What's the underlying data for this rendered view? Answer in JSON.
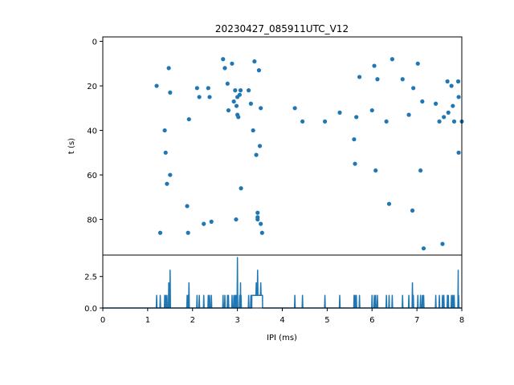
{
  "figure": {
    "title": "20230427_085911UTC_V12",
    "marker_color": "#1f77b4",
    "line_color": "#1f77b4"
  },
  "chart_data": [
    {
      "type": "scatter",
      "title": "20230427_085911UTC_V12",
      "xlabel": "",
      "ylabel": "t (s)",
      "xlim": [
        0,
        8
      ],
      "ylim": [
        96,
        -2
      ],
      "y_inverted": true,
      "yticks": [
        0,
        20,
        40,
        60,
        80
      ],
      "ytick_labels": [
        "0",
        "20",
        "40",
        "60",
        "80"
      ],
      "grid": false,
      "points": [
        {
          "x": 1.2,
          "y": 20
        },
        {
          "x": 1.28,
          "y": 86
        },
        {
          "x": 1.38,
          "y": 40
        },
        {
          "x": 1.4,
          "y": 50
        },
        {
          "x": 1.43,
          "y": 64
        },
        {
          "x": 1.47,
          "y": 12
        },
        {
          "x": 1.5,
          "y": 23
        },
        {
          "x": 1.5,
          "y": 60
        },
        {
          "x": 1.88,
          "y": 74
        },
        {
          "x": 1.9,
          "y": 86
        },
        {
          "x": 1.92,
          "y": 35
        },
        {
          "x": 2.1,
          "y": 21
        },
        {
          "x": 2.15,
          "y": 25
        },
        {
          "x": 2.25,
          "y": 82
        },
        {
          "x": 2.35,
          "y": 21
        },
        {
          "x": 2.38,
          "y": 25
        },
        {
          "x": 2.42,
          "y": 81
        },
        {
          "x": 2.68,
          "y": 8
        },
        {
          "x": 2.72,
          "y": 12
        },
        {
          "x": 2.78,
          "y": 19
        },
        {
          "x": 2.8,
          "y": 31
        },
        {
          "x": 2.88,
          "y": 10
        },
        {
          "x": 2.92,
          "y": 27
        },
        {
          "x": 2.95,
          "y": 22
        },
        {
          "x": 2.97,
          "y": 80
        },
        {
          "x": 2.98,
          "y": 29
        },
        {
          "x": 3.0,
          "y": 25
        },
        {
          "x": 3.0,
          "y": 33
        },
        {
          "x": 3.02,
          "y": 34
        },
        {
          "x": 3.05,
          "y": 24
        },
        {
          "x": 3.07,
          "y": 22
        },
        {
          "x": 3.08,
          "y": 66
        },
        {
          "x": 3.25,
          "y": 22
        },
        {
          "x": 3.3,
          "y": 28
        },
        {
          "x": 3.35,
          "y": 40
        },
        {
          "x": 3.38,
          "y": 9
        },
        {
          "x": 3.42,
          "y": 51
        },
        {
          "x": 3.45,
          "y": 77
        },
        {
          "x": 3.45,
          "y": 79
        },
        {
          "x": 3.45,
          "y": 80
        },
        {
          "x": 3.48,
          "y": 13
        },
        {
          "x": 3.5,
          "y": 47
        },
        {
          "x": 3.52,
          "y": 30
        },
        {
          "x": 3.52,
          "y": 82
        },
        {
          "x": 3.55,
          "y": 86
        },
        {
          "x": 4.28,
          "y": 30
        },
        {
          "x": 4.45,
          "y": 36
        },
        {
          "x": 4.95,
          "y": 36
        },
        {
          "x": 5.28,
          "y": 32
        },
        {
          "x": 5.6,
          "y": 44
        },
        {
          "x": 5.62,
          "y": 55
        },
        {
          "x": 5.65,
          "y": 34
        },
        {
          "x": 5.72,
          "y": 16
        },
        {
          "x": 6.0,
          "y": 31
        },
        {
          "x": 6.05,
          "y": 11
        },
        {
          "x": 6.08,
          "y": 58
        },
        {
          "x": 6.12,
          "y": 17
        },
        {
          "x": 6.32,
          "y": 36
        },
        {
          "x": 6.38,
          "y": 73
        },
        {
          "x": 6.45,
          "y": 8
        },
        {
          "x": 6.68,
          "y": 17
        },
        {
          "x": 6.82,
          "y": 33
        },
        {
          "x": 6.9,
          "y": 76
        },
        {
          "x": 6.92,
          "y": 21
        },
        {
          "x": 7.02,
          "y": 10
        },
        {
          "x": 7.08,
          "y": 58
        },
        {
          "x": 7.12,
          "y": 27
        },
        {
          "x": 7.15,
          "y": 93
        },
        {
          "x": 7.42,
          "y": 28
        },
        {
          "x": 7.5,
          "y": 36
        },
        {
          "x": 7.57,
          "y": 91
        },
        {
          "x": 7.6,
          "y": 34
        },
        {
          "x": 7.68,
          "y": 18
        },
        {
          "x": 7.7,
          "y": 32
        },
        {
          "x": 7.77,
          "y": 20
        },
        {
          "x": 7.8,
          "y": 29
        },
        {
          "x": 7.83,
          "y": 36
        },
        {
          "x": 7.92,
          "y": 18
        },
        {
          "x": 7.93,
          "y": 25
        },
        {
          "x": 7.93,
          "y": 50
        },
        {
          "x": 8.0,
          "y": 36
        }
      ]
    },
    {
      "type": "line",
      "title": "",
      "xlabel": "IPI (ms)",
      "ylabel": "",
      "xlim": [
        0,
        8
      ],
      "ylim": [
        0,
        4.2
      ],
      "xticks": [
        0,
        1,
        2,
        3,
        4,
        5,
        6,
        7,
        8
      ],
      "xtick_labels": [
        "0",
        "1",
        "2",
        "3",
        "4",
        "5",
        "6",
        "7",
        "8"
      ],
      "yticks": [
        0.0,
        2.5
      ],
      "ytick_labels": [
        "0.0",
        "2.5"
      ],
      "grid": false,
      "spikes": [
        {
          "x": 1.2,
          "y": 1
        },
        {
          "x": 1.28,
          "y": 1
        },
        {
          "x": 1.38,
          "y": 1
        },
        {
          "x": 1.4,
          "y": 1
        },
        {
          "x": 1.43,
          "y": 1
        },
        {
          "x": 1.47,
          "y": 2
        },
        {
          "x": 1.5,
          "y": 3
        },
        {
          "x": 1.88,
          "y": 1
        },
        {
          "x": 1.9,
          "y": 1
        },
        {
          "x": 1.92,
          "y": 2
        },
        {
          "x": 2.1,
          "y": 1
        },
        {
          "x": 2.15,
          "y": 1
        },
        {
          "x": 2.25,
          "y": 1
        },
        {
          "x": 2.35,
          "y": 1
        },
        {
          "x": 2.38,
          "y": 1
        },
        {
          "x": 2.42,
          "y": 1
        },
        {
          "x": 2.68,
          "y": 1
        },
        {
          "x": 2.72,
          "y": 1
        },
        {
          "x": 2.78,
          "y": 1
        },
        {
          "x": 2.8,
          "y": 1
        },
        {
          "x": 2.88,
          "y": 1
        },
        {
          "x": 2.92,
          "y": 1
        },
        {
          "x": 2.95,
          "y": 1
        },
        {
          "x": 2.97,
          "y": 1
        },
        {
          "x": 3.0,
          "y": 4
        },
        {
          "x": 3.05,
          "y": 1
        },
        {
          "x": 3.07,
          "y": 2
        },
        {
          "x": 3.08,
          "y": 1
        },
        {
          "x": 3.25,
          "y": 1
        },
        {
          "x": 3.3,
          "y": 1
        },
        {
          "x": 3.35,
          "y": 1
        },
        {
          "x": 3.38,
          "y": 1
        },
        {
          "x": 3.42,
          "y": 2
        },
        {
          "x": 3.45,
          "y": 3
        },
        {
          "x": 3.48,
          "y": 1
        },
        {
          "x": 3.5,
          "y": 1
        },
        {
          "x": 3.52,
          "y": 2
        },
        {
          "x": 3.55,
          "y": 1
        },
        {
          "x": 4.28,
          "y": 1
        },
        {
          "x": 4.45,
          "y": 1
        },
        {
          "x": 4.95,
          "y": 1
        },
        {
          "x": 5.28,
          "y": 1
        },
        {
          "x": 5.6,
          "y": 1
        },
        {
          "x": 5.62,
          "y": 1
        },
        {
          "x": 5.65,
          "y": 1
        },
        {
          "x": 5.72,
          "y": 1
        },
        {
          "x": 6.0,
          "y": 1
        },
        {
          "x": 6.05,
          "y": 1
        },
        {
          "x": 6.08,
          "y": 1
        },
        {
          "x": 6.12,
          "y": 1
        },
        {
          "x": 6.32,
          "y": 1
        },
        {
          "x": 6.38,
          "y": 1
        },
        {
          "x": 6.45,
          "y": 1
        },
        {
          "x": 6.68,
          "y": 1
        },
        {
          "x": 6.82,
          "y": 1
        },
        {
          "x": 6.9,
          "y": 2
        },
        {
          "x": 6.92,
          "y": 1
        },
        {
          "x": 7.02,
          "y": 1
        },
        {
          "x": 7.08,
          "y": 1
        },
        {
          "x": 7.12,
          "y": 1
        },
        {
          "x": 7.15,
          "y": 1
        },
        {
          "x": 7.42,
          "y": 1
        },
        {
          "x": 7.5,
          "y": 1
        },
        {
          "x": 7.57,
          "y": 1
        },
        {
          "x": 7.6,
          "y": 1
        },
        {
          "x": 7.68,
          "y": 1
        },
        {
          "x": 7.7,
          "y": 1
        },
        {
          "x": 7.77,
          "y": 1
        },
        {
          "x": 7.8,
          "y": 1
        },
        {
          "x": 7.83,
          "y": 1
        },
        {
          "x": 7.92,
          "y": 3
        },
        {
          "x": 7.93,
          "y": 1
        }
      ],
      "plateau": {
        "x_start": 3.32,
        "x_end": 3.56,
        "y": 1
      }
    }
  ]
}
